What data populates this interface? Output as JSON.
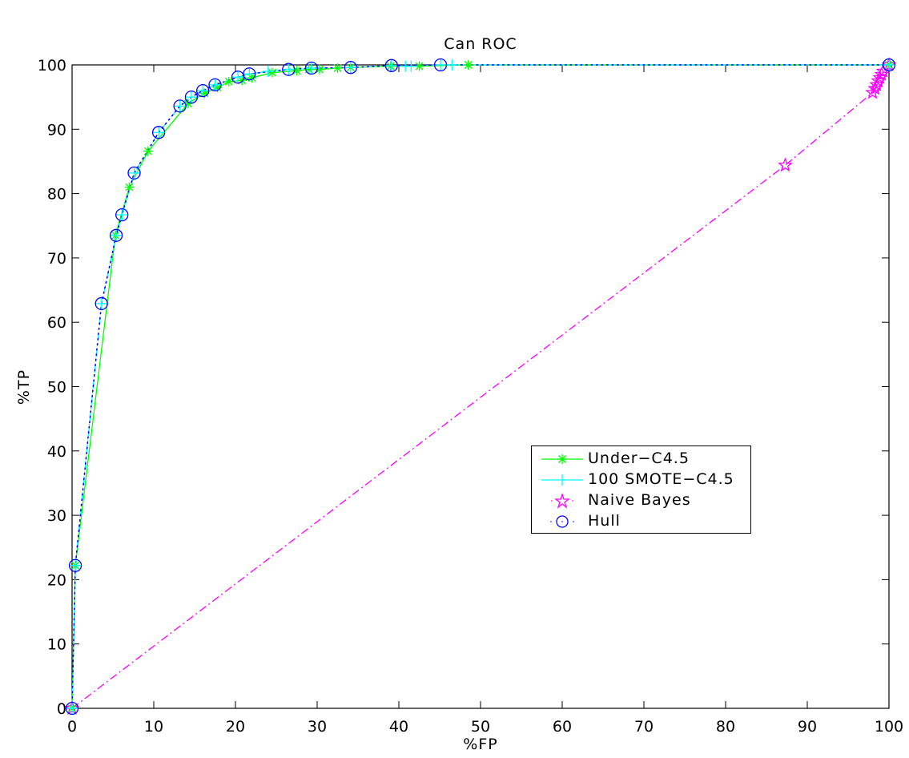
{
  "chart_data": {
    "type": "line",
    "title": "Can ROC",
    "xlabel": "%FP",
    "ylabel": "%TP",
    "xlim": [
      0,
      100
    ],
    "ylim": [
      0,
      100
    ],
    "xticks": [
      0,
      10,
      20,
      30,
      40,
      50,
      60,
      70,
      80,
      90,
      100
    ],
    "yticks": [
      0,
      10,
      20,
      30,
      40,
      50,
      60,
      70,
      80,
      90,
      100
    ],
    "grid": false,
    "legend_position": "center-right",
    "series": [
      {
        "name": "Under−C4.5",
        "color": "#00ff00",
        "marker": "asterisk",
        "linestyle": "solid",
        "x": [
          0,
          0.4,
          5.3,
          7.0,
          9.3,
          14.2,
          16.2,
          17.8,
          19.2,
          20.8,
          22.0,
          24.5,
          27.5,
          29.0,
          30.3,
          32.5,
          34.1,
          39.0,
          42.5,
          48.5,
          100
        ],
        "y": [
          0,
          22.2,
          73.5,
          81.0,
          86.6,
          94.0,
          95.6,
          96.5,
          97.4,
          97.6,
          98.0,
          98.8,
          99.1,
          99.3,
          99.3,
          99.5,
          99.6,
          99.8,
          99.8,
          100,
          100
        ]
      },
      {
        "name": "100 SMOTE−C4.5",
        "color": "#00ffff",
        "marker": "plus",
        "linestyle": "dashdot",
        "x": [
          0,
          0.4,
          3.6,
          5.4,
          6.1,
          7.6,
          10.6,
          13.2,
          14.6,
          16.0,
          17.5,
          20.3,
          21.7,
          24.0,
          26.5,
          29.3,
          34.1,
          39.1,
          40.8,
          41.5,
          45.1,
          46.5,
          100
        ],
        "y": [
          0,
          22.2,
          62.9,
          73.5,
          76.7,
          83.2,
          89.5,
          93.6,
          95.0,
          96.0,
          96.9,
          98.1,
          98.6,
          99.0,
          99.3,
          99.5,
          99.6,
          99.9,
          99.8,
          99.8,
          100,
          100,
          100
        ]
      },
      {
        "name": "Naive Bayes",
        "color": "#ff00ff",
        "marker": "star",
        "linestyle": "dashdot",
        "x": [
          0,
          87.3,
          98.0,
          98.3,
          98.5,
          98.7,
          98.9,
          99.1,
          99.3,
          100
        ],
        "y": [
          0,
          84.4,
          95.7,
          96.3,
          96.9,
          97.5,
          98.0,
          98.5,
          99.0,
          100
        ]
      },
      {
        "name": "Hull",
        "color": "#0000ff",
        "marker": "circle",
        "linestyle": "dotted",
        "x": [
          0,
          0.4,
          3.6,
          5.4,
          6.1,
          7.6,
          10.6,
          13.2,
          14.6,
          16.0,
          17.5,
          20.3,
          21.7,
          26.5,
          29.3,
          34.1,
          39.1,
          45.1,
          100
        ],
        "y": [
          0,
          22.2,
          62.9,
          73.5,
          76.7,
          83.2,
          89.5,
          93.6,
          95.0,
          96.0,
          96.9,
          98.1,
          98.6,
          99.3,
          99.5,
          99.6,
          99.9,
          100,
          100
        ]
      }
    ]
  },
  "legend": {
    "items": [
      {
        "label": "Under−C4.5"
      },
      {
        "label": "100 SMOTE−C4.5"
      },
      {
        "label": "Naive Bayes"
      },
      {
        "label": "Hull"
      }
    ]
  }
}
